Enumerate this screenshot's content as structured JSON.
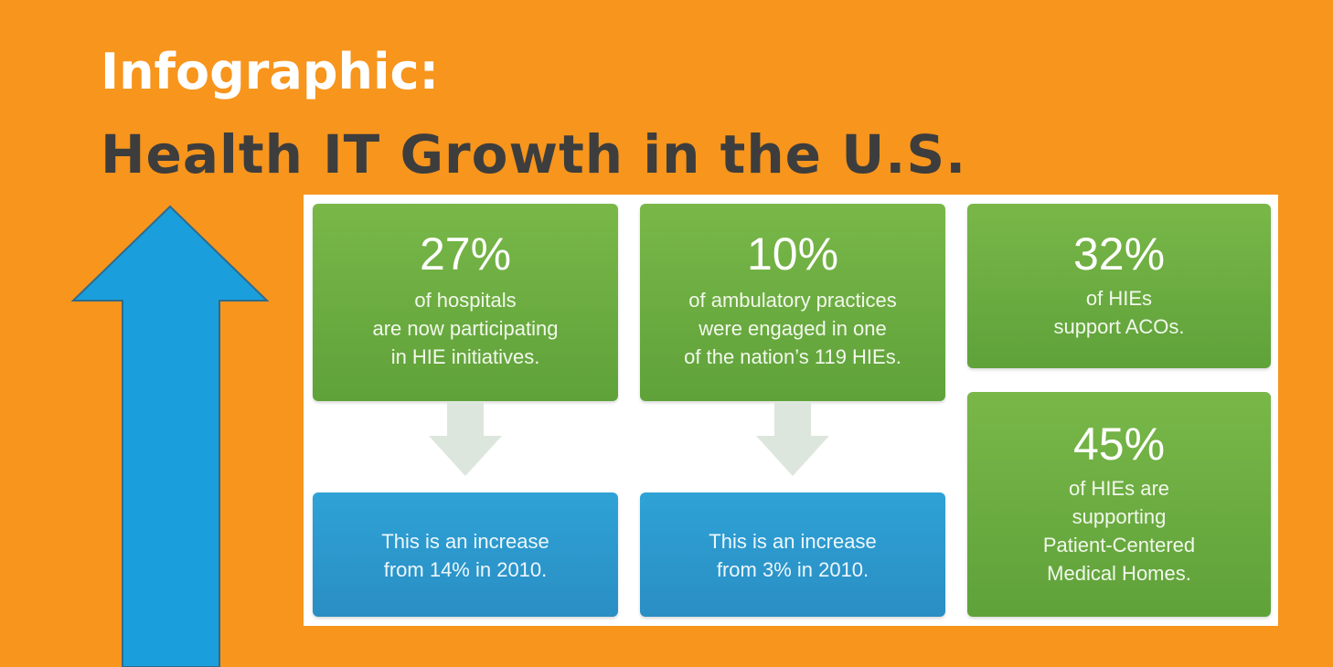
{
  "title": {
    "line1": "Infographic:",
    "line2": "Health IT Growth in the U.S."
  },
  "colors": {
    "background": "#f7951d",
    "green": "#6aad40",
    "blue": "#2b96cb",
    "arrow_blue": "#1a9fdc",
    "arrow_pale": "#dde6dc"
  },
  "icons": {
    "big_arrow": "up-arrow",
    "connector": "down-arrow"
  },
  "stats": [
    {
      "value": "27%",
      "text": "of hospitals\nare now participating\nin HIE initiatives."
    },
    {
      "value": "10%",
      "text": "of ambulatory practices\nwere engaged in one\nof the nation’s 119 HIEs."
    },
    {
      "value": "32%",
      "text": "of HIEs\nsupport ACOs."
    },
    {
      "value": "45%",
      "text": "of HIEs are\nsupporting\nPatient-Centered\nMedical Homes."
    }
  ],
  "notes": [
    {
      "text": "This is an increase\nfrom 14% in 2010."
    },
    {
      "text": "This is an increase\nfrom 3% in 2010."
    }
  ]
}
